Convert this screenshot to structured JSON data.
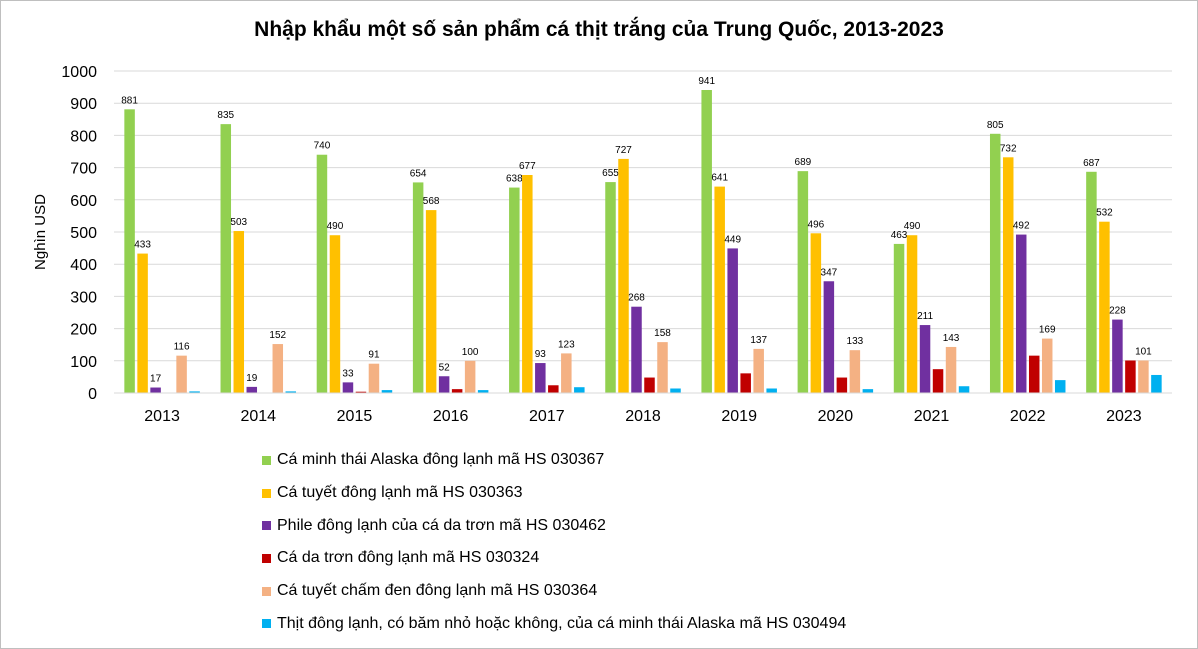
{
  "chart_data": {
    "type": "bar",
    "title": "Nhập khẩu một số sản phẩm cá thịt trắng của Trung Quốc, 2013-2023",
    "ylabel": "Nghìn USD",
    "xlabel": "",
    "ylim": [
      0,
      1000
    ],
    "yticks": [
      0,
      100,
      200,
      300,
      400,
      500,
      600,
      700,
      800,
      900,
      1000
    ],
    "grid": true,
    "legend_position": "bottom",
    "categories": [
      "2013",
      "2014",
      "2015",
      "2016",
      "2017",
      "2018",
      "2019",
      "2020",
      "2021",
      "2022",
      "2023"
    ],
    "series": [
      {
        "name": "Cá minh thái Alaska đông lạnh mã HS 030367",
        "color": "#92d050",
        "labeled": true,
        "values": [
          881,
          835,
          740,
          654,
          638,
          655,
          941,
          689,
          463,
          805,
          687
        ]
      },
      {
        "name": "Cá tuyết đông lạnh mã HS 030363",
        "color": "#ffc000",
        "labeled": true,
        "values": [
          433,
          503,
          490,
          568,
          677,
          727,
          641,
          496,
          490,
          732,
          532
        ]
      },
      {
        "name": "Phile đông lạnh của cá da trơn mã HS 030462",
        "color": "#7030a0",
        "labeled": true,
        "values": [
          17,
          19,
          33,
          52,
          93,
          268,
          449,
          347,
          211,
          492,
          228
        ]
      },
      {
        "name": "Cá da trơn đông lạnh mã HS 030324",
        "color": "#c00000",
        "labeled": false,
        "values": [
          1,
          1,
          4,
          12,
          24,
          48,
          61,
          48,
          74,
          116,
          101
        ]
      },
      {
        "name": "Cá tuyết chấm đen đông lạnh mã HS 030364",
        "color": "#f4b183",
        "labeled": true,
        "values": [
          116,
          152,
          91,
          100,
          123,
          158,
          137,
          133,
          143,
          169,
          101
        ]
      },
      {
        "name": "Thịt đông lạnh, có băm nhỏ hoặc không, của cá minh thái Alaska mã HS 030494",
        "color": "#00b0f0",
        "labeled": false,
        "values": [
          5,
          5,
          9,
          9,
          18,
          14,
          14,
          12,
          21,
          40,
          56
        ]
      }
    ]
  }
}
